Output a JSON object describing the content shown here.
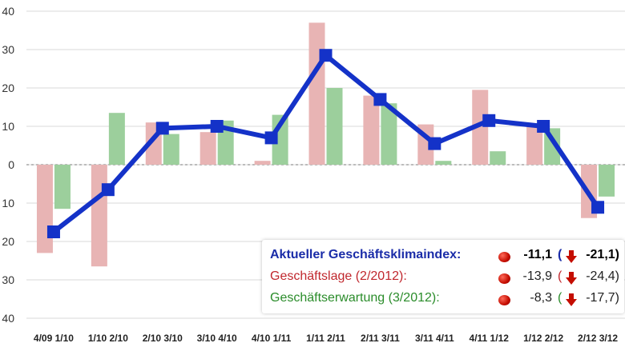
{
  "chart_data": {
    "type": "bar",
    "categories": [
      "4/09 1/10",
      "1/10 2/10",
      "2/10 3/10",
      "3/10 4/10",
      "4/10 1/11",
      "1/11 2/11",
      "2/11 3/11",
      "3/11 4/11",
      "4/11 1/12",
      "1/12 2/12",
      "2/12 3/12"
    ],
    "series": [
      {
        "values": [
          -23,
          -26.5,
          11,
          8.5,
          1,
          37,
          18,
          10.5,
          19.5,
          10,
          -13.9
        ],
        "color": "#e8b4b4",
        "kind": "bar"
      },
      {
        "values": [
          -11.5,
          13.5,
          8,
          11.5,
          13,
          20,
          16,
          1,
          3.5,
          9.5,
          -8.3
        ],
        "color": "#9ccf9c",
        "kind": "bar"
      },
      {
        "values": [
          -17.5,
          -6.5,
          9.5,
          10,
          7,
          28.5,
          17,
          5.5,
          11.5,
          10,
          -11.1
        ],
        "color": "#1432c8",
        "kind": "line"
      }
    ],
    "yticks": [
      "40",
      "30",
      "20",
      "10",
      "0",
      "10",
      "20",
      "30",
      "40"
    ],
    "ylim": [
      -40,
      40
    ],
    "grid": true
  },
  "legend": {
    "rows": [
      {
        "label": "Aktueller Geschäftsklimaindex:",
        "value": "-11,1",
        "paren": "(",
        "prev": "-21,1)"
      },
      {
        "label": "Geschäftslage (2/2012):",
        "value": "-13,9",
        "paren": "(",
        "prev": "-24,4)"
      },
      {
        "label": "Geschäftserwartung (3/2012):",
        "value": "-8,3",
        "paren": "(",
        "prev": "-17,7)"
      }
    ],
    "dot_icon": "red-dot-icon",
    "arrow_icon": "down-arrow-icon",
    "arrow_color": "#c40d00"
  }
}
